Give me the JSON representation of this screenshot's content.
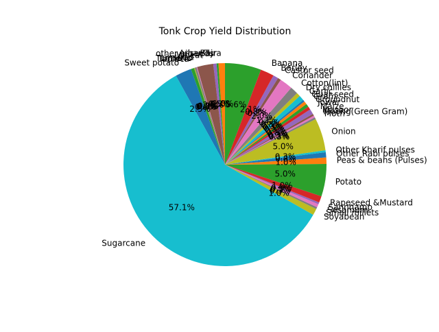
{
  "chart_data": {
    "type": "pie",
    "title": "Tonk Crop Yield Distribution",
    "start_angle_deg": 90,
    "direction": "counterclockwise",
    "slices": [
      {
        "label": "Bajra",
        "value": 1.0,
        "pct_label": "1.0%",
        "color": "#ff7f0e"
      },
      {
        "label": "Arhar/Tur",
        "value": 0.3,
        "pct_label": "0.3%",
        "color": "#2ca02c"
      },
      {
        "label": "other oilseeds",
        "value": 0.5,
        "pct_label": "0.5%",
        "color": "#9467bd"
      },
      {
        "label": "Wheat",
        "value": 2.5,
        "pct_label": "2.5%",
        "color": "#8c564b"
      },
      {
        "label": "Urad",
        "value": 0.1,
        "pct_label": "0.1%",
        "color": "#e377c2"
      },
      {
        "label": "Linseed",
        "value": 0.3,
        "pct_label": "0.3%",
        "color": "#7f7f7f"
      },
      {
        "label": "Turmeric",
        "value": 0.1,
        "pct_label": "0.1%",
        "color": "#bcbd22"
      },
      {
        "label": "Tapioca",
        "value": 0.5,
        "pct_label": "0.5%",
        "color": "#2ca02c"
      },
      {
        "label": "Sweet potato",
        "value": 2.5,
        "pct_label": "2.5%",
        "color": "#1f77b4"
      },
      {
        "label": "Sugarcane",
        "value": 57.1,
        "pct_label": "57.1%",
        "color": "#17becf"
      },
      {
        "label": "Soyabean",
        "value": 1.0,
        "pct_label": "1.0%",
        "color": "#bcbd22"
      },
      {
        "label": "Small millets",
        "value": 0.3,
        "pct_label": "0.3%",
        "color": "#7f7f7f"
      },
      {
        "label": "Sesamum",
        "value": 0.5,
        "pct_label": "0.5%",
        "color": "#e377c2"
      },
      {
        "label": "Sannhamp",
        "value": 0.3,
        "pct_label": "0.3%",
        "color": "#9467bd"
      },
      {
        "label": "Rapeseed &Mustard",
        "value": 1.0,
        "pct_label": "1.0%",
        "color": "#d62728"
      },
      {
        "label": "Potato",
        "value": 5.0,
        "pct_label": "5.0%",
        "color": "#2ca02c"
      },
      {
        "label": "Peas & beans (Pulses)",
        "value": 1.0,
        "pct_label": "1.0%",
        "color": "#ff7f0e"
      },
      {
        "label": "Other Rabi pulses",
        "value": 0.8,
        "pct_label": "0.8%",
        "color": "#1f77b4"
      },
      {
        "label": "Other Kharif pulses",
        "value": 0.3,
        "pct_label": "0.3%",
        "color": "#17becf"
      },
      {
        "label": "Onion",
        "value": 5.0,
        "pct_label": "5.0%",
        "color": "#bcbd22"
      },
      {
        "label": "Moth",
        "value": 0.3,
        "pct_label": "0.3%",
        "color": "#7f7f7f"
      },
      {
        "label": "Moong(Green Gram)",
        "value": 0.3,
        "pct_label": "0.3%",
        "color": "#e377c2"
      },
      {
        "label": "Masoor",
        "value": 0.3,
        "pct_label": "0.3%",
        "color": "#8c564b"
      },
      {
        "label": "Maize",
        "value": 0.8,
        "pct_label": "0.8%",
        "color": "#9467bd"
      },
      {
        "label": "Jowar",
        "value": 0.5,
        "pct_label": "0.5%",
        "color": "#d62728"
      },
      {
        "label": "Groundnut",
        "value": 0.5,
        "pct_label": "0.5%",
        "color": "#2ca02c"
      },
      {
        "label": "Gram",
        "value": 0.5,
        "pct_label": "0.5%",
        "color": "#ff7f0e"
      },
      {
        "label": "Guar seed",
        "value": 0.3,
        "pct_label": "0.3%",
        "color": "#1f77b4"
      },
      {
        "label": "Garlic",
        "value": 0.8,
        "pct_label": "0.8%",
        "color": "#17becf"
      },
      {
        "label": "Dry chillies",
        "value": 0.6,
        "pct_label": "0.6%",
        "color": "#bcbd22"
      },
      {
        "label": "Cotton(lint)",
        "value": 1.2,
        "pct_label": "1.2%",
        "color": "#7f7f7f"
      },
      {
        "label": "Coriander",
        "value": 2.0,
        "pct_label": "2.0%",
        "color": "#e377c2"
      },
      {
        "label": "Castor seed",
        "value": 0.5,
        "pct_label": "0.5%",
        "color": "#8c564b"
      },
      {
        "label": "Barley",
        "value": 0.8,
        "pct_label": "0.8%",
        "color": "#9467bd"
      },
      {
        "label": "Banana",
        "value": 2.1,
        "pct_label": "2.1%",
        "color": "#d62728"
      },
      {
        "label": "",
        "value": 5.6,
        "pct_label": "5.6%",
        "color": "#2ca02c"
      }
    ]
  }
}
